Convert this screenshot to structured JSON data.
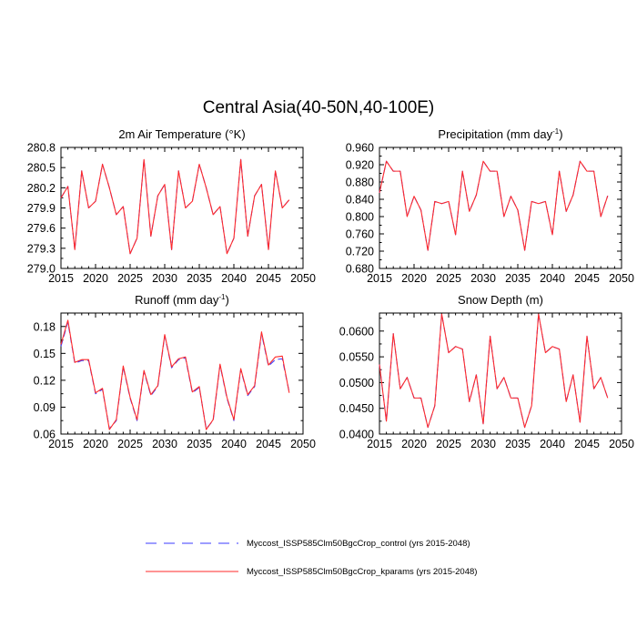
{
  "title": "Central Asia(40-50N,40-100E)",
  "colors": {
    "control": "#3b3bff",
    "kparams": "#ff2a2a",
    "axis": "#000000"
  },
  "legend": [
    {
      "series": "control",
      "label": "Myccost_ISSP585Clm50BgcCrop_control (yrs 2015-2048)",
      "style": "dashed"
    },
    {
      "series": "kparams",
      "label": "Myccost_ISSP585Clm50BgcCrop_kparams (yrs 2015-2048)",
      "style": "solid"
    }
  ],
  "chart_data": [
    {
      "type": "line",
      "title": "2m Air Temperature (°K)",
      "xlim": [
        2015,
        2050
      ],
      "ylim": [
        279.0,
        280.8
      ],
      "xticks": [
        "2015",
        "2020",
        "2025",
        "2030",
        "2035",
        "2040",
        "2045",
        "2050"
      ],
      "yticks": [
        "279.0",
        "279.3",
        "279.6",
        "279.9",
        "280.2",
        "280.5",
        "280.8"
      ],
      "x": [
        2015,
        2016,
        2017,
        2018,
        2019,
        2020,
        2021,
        2022,
        2023,
        2024,
        2025,
        2026,
        2027,
        2028,
        2029,
        2030,
        2031,
        2032,
        2033,
        2034,
        2035,
        2036,
        2037,
        2038,
        2039,
        2040,
        2041,
        2042,
        2043,
        2044,
        2045,
        2046,
        2047,
        2048
      ],
      "series": [
        {
          "name": "control",
          "values": [
            280.05,
            280.22,
            279.28,
            280.45,
            279.9,
            280.0,
            280.55,
            280.2,
            279.8,
            279.92,
            279.22,
            279.45,
            280.62,
            279.48,
            280.08,
            280.25,
            279.28,
            280.45,
            279.9,
            280.0,
            280.55,
            280.2,
            279.8,
            279.92,
            279.22,
            279.45,
            280.62,
            279.48,
            280.08,
            280.25,
            279.28,
            280.45,
            279.9,
            280.02
          ]
        },
        {
          "name": "kparams",
          "values": [
            280.05,
            280.22,
            279.28,
            280.45,
            279.9,
            280.0,
            280.55,
            280.2,
            279.8,
            279.92,
            279.22,
            279.45,
            280.62,
            279.48,
            280.08,
            280.25,
            279.28,
            280.45,
            279.9,
            280.0,
            280.55,
            280.2,
            279.8,
            279.92,
            279.22,
            279.45,
            280.62,
            279.48,
            280.08,
            280.25,
            279.28,
            280.45,
            279.9,
            280.02
          ]
        }
      ]
    },
    {
      "type": "line",
      "title": "Precipitation (mm day",
      "title_sup": "-1",
      "title_end": ")",
      "xlim": [
        2015,
        2050
      ],
      "ylim": [
        0.68,
        0.96
      ],
      "xticks": [
        "2015",
        "2020",
        "2025",
        "2030",
        "2035",
        "2040",
        "2045",
        "2050"
      ],
      "yticks": [
        "0.680",
        "0.720",
        "0.760",
        "0.800",
        "0.840",
        "0.880",
        "0.920",
        "0.960"
      ],
      "x": [
        2015,
        2016,
        2017,
        2018,
        2019,
        2020,
        2021,
        2022,
        2023,
        2024,
        2025,
        2026,
        2027,
        2028,
        2029,
        2030,
        2031,
        2032,
        2033,
        2034,
        2035,
        2036,
        2037,
        2038,
        2039,
        2040,
        2041,
        2042,
        2043,
        2044,
        2045,
        2046,
        2047,
        2048
      ],
      "series": [
        {
          "name": "control",
          "values": [
            0.855,
            0.928,
            0.905,
            0.905,
            0.8,
            0.847,
            0.815,
            0.722,
            0.835,
            0.83,
            0.835,
            0.758,
            0.905,
            0.812,
            0.85,
            0.928,
            0.905,
            0.905,
            0.8,
            0.847,
            0.815,
            0.722,
            0.835,
            0.83,
            0.835,
            0.758,
            0.905,
            0.812,
            0.85,
            0.928,
            0.905,
            0.905,
            0.8,
            0.848
          ]
        },
        {
          "name": "kparams",
          "values": [
            0.855,
            0.928,
            0.905,
            0.905,
            0.8,
            0.847,
            0.815,
            0.722,
            0.835,
            0.83,
            0.835,
            0.758,
            0.905,
            0.812,
            0.85,
            0.928,
            0.905,
            0.905,
            0.8,
            0.847,
            0.815,
            0.722,
            0.835,
            0.83,
            0.835,
            0.758,
            0.905,
            0.812,
            0.85,
            0.928,
            0.905,
            0.905,
            0.8,
            0.848
          ]
        }
      ]
    },
    {
      "type": "line",
      "title": "Runoff (mm day",
      "title_sup": "-1",
      "title_end": ")",
      "xlim": [
        2015,
        2050
      ],
      "ylim": [
        0.06,
        0.195
      ],
      "xticks": [
        "2015",
        "2020",
        "2025",
        "2030",
        "2035",
        "2040",
        "2045",
        "2050"
      ],
      "yticks": [
        "0.06",
        "0.09",
        "0.12",
        "0.15",
        "0.18"
      ],
      "x": [
        2015,
        2016,
        2017,
        2018,
        2019,
        2020,
        2021,
        2022,
        2023,
        2024,
        2025,
        2026,
        2027,
        2028,
        2029,
        2030,
        2031,
        2032,
        2033,
        2034,
        2035,
        2036,
        2037,
        2038,
        2039,
        2040,
        2041,
        2042,
        2043,
        2044,
        2045,
        2046,
        2047,
        2048
      ],
      "series": [
        {
          "name": "control",
          "values": [
            0.158,
            0.185,
            0.139,
            0.142,
            0.142,
            0.105,
            0.11,
            0.066,
            0.075,
            0.135,
            0.1,
            0.075,
            0.13,
            0.103,
            0.113,
            0.17,
            0.134,
            0.143,
            0.145,
            0.106,
            0.112,
            0.066,
            0.075,
            0.137,
            0.1,
            0.075,
            0.132,
            0.103,
            0.113,
            0.172,
            0.136,
            0.143,
            0.144,
            0.107
          ]
        },
        {
          "name": "kparams",
          "values": [
            0.16,
            0.187,
            0.14,
            0.143,
            0.143,
            0.106,
            0.111,
            0.065,
            0.076,
            0.136,
            0.101,
            0.076,
            0.131,
            0.104,
            0.114,
            0.171,
            0.135,
            0.144,
            0.146,
            0.107,
            0.113,
            0.065,
            0.076,
            0.138,
            0.101,
            0.076,
            0.133,
            0.104,
            0.114,
            0.174,
            0.137,
            0.146,
            0.147,
            0.106
          ]
        }
      ]
    },
    {
      "type": "line",
      "title": "Snow Depth (m)",
      "xlim": [
        2015,
        2050
      ],
      "ylim": [
        0.04,
        0.0635
      ],
      "xticks": [
        "2015",
        "2020",
        "2025",
        "2030",
        "2035",
        "2040",
        "2045",
        "2050"
      ],
      "yticks": [
        "0.0400",
        "0.0450",
        "0.0500",
        "0.0550",
        "0.0600"
      ],
      "x": [
        2015,
        2016,
        2017,
        2018,
        2019,
        2020,
        2021,
        2022,
        2023,
        2024,
        2025,
        2026,
        2027,
        2028,
        2029,
        2030,
        2031,
        2032,
        2033,
        2034,
        2035,
        2036,
        2037,
        2038,
        2039,
        2040,
        2041,
        2042,
        2043,
        2044,
        2045,
        2046,
        2047,
        2048
      ],
      "series": [
        {
          "name": "control",
          "values": [
            0.0535,
            0.0425,
            0.0595,
            0.0488,
            0.051,
            0.047,
            0.047,
            0.0413,
            0.0455,
            0.0633,
            0.0558,
            0.057,
            0.0565,
            0.0463,
            0.0515,
            0.042,
            0.059,
            0.0488,
            0.051,
            0.047,
            0.047,
            0.0413,
            0.0455,
            0.0633,
            0.0558,
            0.057,
            0.0565,
            0.0463,
            0.0515,
            0.0423,
            0.059,
            0.0488,
            0.051,
            0.047
          ]
        },
        {
          "name": "kparams",
          "values": [
            0.0535,
            0.0425,
            0.0595,
            0.0488,
            0.051,
            0.047,
            0.047,
            0.0413,
            0.0455,
            0.0633,
            0.0558,
            0.057,
            0.0565,
            0.0463,
            0.0515,
            0.042,
            0.059,
            0.0488,
            0.051,
            0.047,
            0.047,
            0.0413,
            0.0455,
            0.0633,
            0.0558,
            0.057,
            0.0565,
            0.0463,
            0.0515,
            0.0423,
            0.059,
            0.0488,
            0.051,
            0.047
          ]
        }
      ]
    }
  ]
}
